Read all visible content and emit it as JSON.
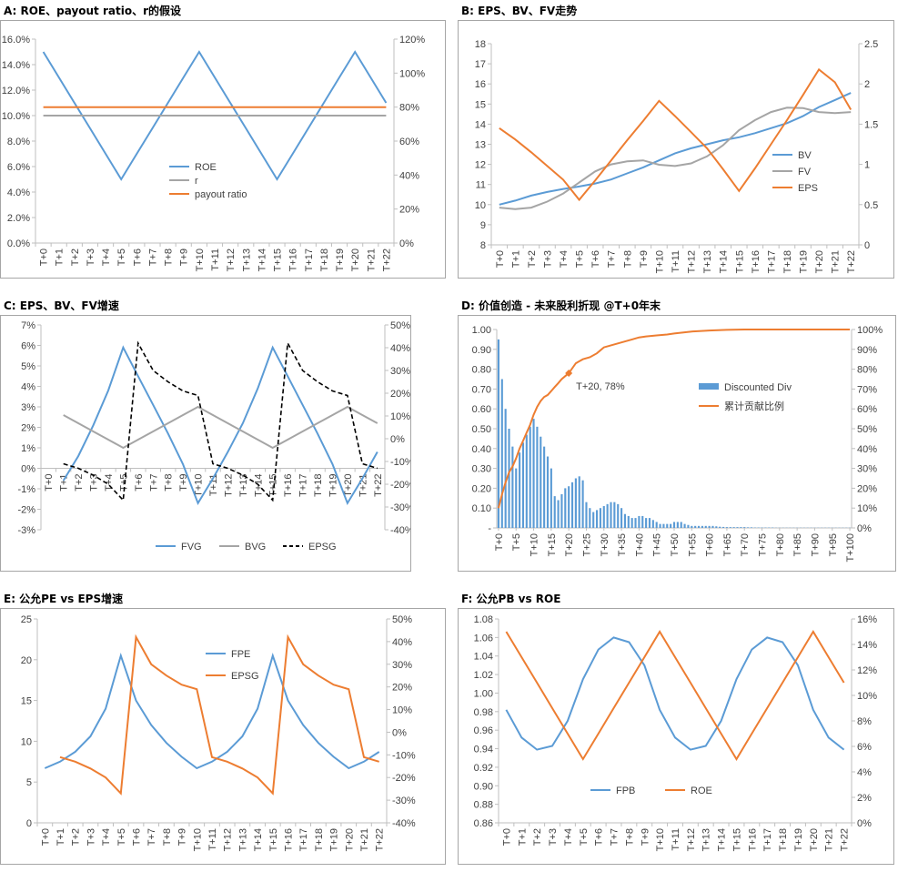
{
  "colors": {
    "blue": "#5b9bd5",
    "orange": "#ed7d31",
    "gray": "#a5a5a5",
    "black": "#000000",
    "axis": "#bfbfbf",
    "text": "#404040"
  },
  "panels": {
    "A": {
      "title": "A:  ROE、payout ratio、r的假设"
    },
    "B": {
      "title": "B: EPS、BV、FV走势"
    },
    "C": {
      "title": "C: EPS、BV、FV增速"
    },
    "D": {
      "title": "D:  价值创造 - 未来股利折现 @T+0年末"
    },
    "E": {
      "title": "E:  公允PE vs EPS增速"
    },
    "F": {
      "title": "F:  公允PB vs ROE"
    }
  },
  "chart_data": [
    {
      "id": "A",
      "type": "line",
      "categories": [
        "T+0",
        "T+1",
        "T+2",
        "T+3",
        "T+4",
        "T+5",
        "T+6",
        "T+7",
        "T+8",
        "T+9",
        "T+10",
        "T+11",
        "T+12",
        "T+13",
        "T+14",
        "T+15",
        "T+16",
        "T+17",
        "T+18",
        "T+19",
        "T+20",
        "T+21",
        "T+22"
      ],
      "y_left": {
        "min": 0,
        "max": 0.16,
        "step": 0.02,
        "labels": [
          "0.0%",
          "2.0%",
          "4.0%",
          "6.0%",
          "8.0%",
          "10.0%",
          "12.0%",
          "14.0%",
          "16.0%"
        ]
      },
      "y_right": {
        "min": 0,
        "max": 1.2,
        "step": 0.2,
        "labels": [
          "0%",
          "20%",
          "40%",
          "60%",
          "80%",
          "100%",
          "120%"
        ]
      },
      "legend_position": "center",
      "series": [
        {
          "name": "ROE",
          "color": "#5b9bd5",
          "dash": "solid",
          "axis": "left",
          "values": [
            0.15,
            0.13,
            0.11,
            0.09,
            0.07,
            0.05,
            0.07,
            0.09,
            0.11,
            0.13,
            0.15,
            0.13,
            0.11,
            0.09,
            0.07,
            0.05,
            0.07,
            0.09,
            0.11,
            0.13,
            0.15,
            0.13,
            0.11
          ]
        },
        {
          "name": "r",
          "color": "#a5a5a5",
          "dash": "solid",
          "axis": "left",
          "values": [
            0.1,
            0.1,
            0.1,
            0.1,
            0.1,
            0.1,
            0.1,
            0.1,
            0.1,
            0.1,
            0.1,
            0.1,
            0.1,
            0.1,
            0.1,
            0.1,
            0.1,
            0.1,
            0.1,
            0.1,
            0.1,
            0.1,
            0.1
          ]
        },
        {
          "name": "payout ratio",
          "color": "#ed7d31",
          "dash": "solid",
          "axis": "right",
          "values": [
            0.8,
            0.8,
            0.8,
            0.8,
            0.8,
            0.8,
            0.8,
            0.8,
            0.8,
            0.8,
            0.8,
            0.8,
            0.8,
            0.8,
            0.8,
            0.8,
            0.8,
            0.8,
            0.8,
            0.8,
            0.8,
            0.8,
            0.8
          ]
        }
      ]
    },
    {
      "id": "B",
      "type": "line",
      "categories": [
        "T+0",
        "T+1",
        "T+2",
        "T+3",
        "T+4",
        "T+5",
        "T+6",
        "T+7",
        "T+8",
        "T+9",
        "T+10",
        "T+11",
        "T+12",
        "T+13",
        "T+14",
        "T+15",
        "T+16",
        "T+17",
        "T+18",
        "T+19",
        "T+20",
        "T+21",
        "T+22"
      ],
      "y_left": {
        "min": 8,
        "max": 18,
        "step": 1,
        "labels": [
          "8",
          "9",
          "10",
          "11",
          "12",
          "13",
          "14",
          "15",
          "16",
          "17",
          "18"
        ]
      },
      "y_right": {
        "min": 0,
        "max": 2.5,
        "step": 0.5,
        "labels": [
          "0",
          "0.5",
          "1",
          "1.5",
          "2",
          "2.5"
        ]
      },
      "legend_position": "center-right",
      "series": [
        {
          "name": "BV",
          "color": "#5b9bd5",
          "dash": "solid",
          "axis": "left",
          "values": [
            10.0,
            10.2,
            10.45,
            10.63,
            10.78,
            10.9,
            11.05,
            11.25,
            11.55,
            11.85,
            12.2,
            12.55,
            12.8,
            13.0,
            13.2,
            13.35,
            13.55,
            13.8,
            14.05,
            14.4,
            14.85,
            15.2,
            15.55
          ]
        },
        {
          "name": "FV",
          "color": "#a5a5a5",
          "dash": "solid",
          "axis": "left",
          "values": [
            9.85,
            9.78,
            9.85,
            10.15,
            10.55,
            11.1,
            11.65,
            12.0,
            12.15,
            12.2,
            11.98,
            11.92,
            12.05,
            12.4,
            12.95,
            13.7,
            14.2,
            14.6,
            14.82,
            14.8,
            14.6,
            14.55,
            14.6
          ]
        },
        {
          "name": "EPS",
          "color": "#ed7d31",
          "dash": "solid",
          "axis": "right",
          "values": [
            1.45,
            1.31,
            1.15,
            0.98,
            0.81,
            0.56,
            0.8,
            1.05,
            1.3,
            1.54,
            1.79,
            1.6,
            1.4,
            1.2,
            0.94,
            0.67,
            0.95,
            1.25,
            1.55,
            1.86,
            2.18,
            2.02,
            1.68
          ]
        }
      ]
    },
    {
      "id": "C",
      "type": "line",
      "categories": [
        "T+0",
        "T+1",
        "T+2",
        "T+3",
        "T+4",
        "T+5",
        "T+6",
        "T+7",
        "T+8",
        "T+9",
        "T+10",
        "T+11",
        "T+12",
        "T+13",
        "T+14",
        "T+15",
        "T+16",
        "T+17",
        "T+18",
        "T+19",
        "T+20",
        "T+21",
        "T+22"
      ],
      "y_left": {
        "min": -0.03,
        "max": 0.07,
        "step": 0.01,
        "labels": [
          "-3%",
          "-2%",
          "-1%",
          "0%",
          "1%",
          "2%",
          "3%",
          "4%",
          "5%",
          "6%",
          "7%"
        ]
      },
      "y_right": {
        "min": -0.4,
        "max": 0.5,
        "step": 0.1,
        "labels": [
          "-40%",
          "-30%",
          "-20%",
          "-10%",
          "0%",
          "10%",
          "20%",
          "30%",
          "40%",
          "50%"
        ]
      },
      "legend_position": "bottom",
      "series": [
        {
          "name": "FVG",
          "color": "#5b9bd5",
          "dash": "solid",
          "axis": "left",
          "values": [
            null,
            -0.006,
            0.006,
            0.021,
            0.038,
            0.059,
            0.045,
            0.031,
            0.017,
            0.002,
            -0.017,
            -0.005,
            0.008,
            0.022,
            0.039,
            0.059,
            0.045,
            0.031,
            0.017,
            0.002,
            -0.017,
            -0.005,
            0.008
          ]
        },
        {
          "name": "BVG",
          "color": "#a5a5a5",
          "dash": "solid",
          "axis": "left",
          "values": [
            null,
            0.026,
            0.022,
            0.018,
            0.014,
            0.01,
            0.014,
            0.018,
            0.022,
            0.026,
            0.03,
            0.026,
            0.022,
            0.018,
            0.014,
            0.01,
            0.014,
            0.018,
            0.022,
            0.026,
            0.03,
            0.026,
            0.022
          ]
        },
        {
          "name": "EPSG",
          "color": "#000000",
          "dash": "dash",
          "axis": "right",
          "values": [
            null,
            -0.11,
            -0.13,
            -0.16,
            -0.2,
            -0.27,
            0.42,
            0.3,
            0.25,
            0.21,
            0.19,
            -0.11,
            -0.13,
            -0.16,
            -0.2,
            -0.27,
            0.42,
            0.3,
            0.25,
            0.21,
            0.19,
            -0.11,
            -0.13
          ]
        }
      ]
    },
    {
      "id": "D",
      "type": "bar",
      "categories": [
        "T+0",
        "T+5",
        "T+10",
        "T+15",
        "T+20",
        "T+25",
        "T+30",
        "T+35",
        "T+40",
        "T+45",
        "T+50",
        "T+55",
        "T+60",
        "T+65",
        "T+70",
        "T+75",
        "T+80",
        "T+85",
        "T+90",
        "T+95",
        "T+100"
      ],
      "y_left": {
        "min": 0,
        "max": 1.0,
        "step": 0.1,
        "labels": [
          "-",
          "0.10",
          "0.20",
          "0.30",
          "0.40",
          "0.50",
          "0.60",
          "0.70",
          "0.80",
          "0.90",
          "1.00"
        ]
      },
      "y_right": {
        "min": 0,
        "max": 1.0,
        "step": 0.1,
        "labels": [
          "0%",
          "10%",
          "20%",
          "30%",
          "40%",
          "50%",
          "60%",
          "70%",
          "80%",
          "90%",
          "100%"
        ]
      },
      "legend_position": "center-right",
      "annotation": {
        "text": "T+20, 78%",
        "x": 20,
        "y": 0.78
      },
      "bar_series": {
        "name": "Discounted Div",
        "color": "#5b9bd5",
        "values": [
          0.95,
          0.75,
          0.6,
          0.5,
          0.41,
          0.3,
          0.38,
          0.43,
          0.47,
          0.51,
          0.55,
          0.51,
          0.46,
          0.41,
          0.36,
          0.3,
          0.16,
          0.14,
          0.17,
          0.2,
          0.21,
          0.23,
          0.25,
          0.26,
          0.24,
          0.13,
          0.1,
          0.08,
          0.09,
          0.1,
          0.11,
          0.12,
          0.13,
          0.13,
          0.12,
          0.1,
          0.07,
          0.06,
          0.05,
          0.05,
          0.06,
          0.06,
          0.05,
          0.05,
          0.04,
          0.03,
          0.02,
          0.02,
          0.02,
          0.02,
          0.03,
          0.03,
          0.03,
          0.02,
          0.015,
          0.01,
          0.01,
          0.01,
          0.01,
          0.01,
          0.01,
          0.01,
          0.008,
          0.006,
          0.005,
          0.004,
          0.004,
          0.004,
          0.004,
          0.004,
          0.004,
          0.003,
          0.003,
          0.002,
          0.002,
          0.002,
          0.002,
          0.002,
          0.002,
          0.001,
          0.001,
          0.001,
          0.001,
          0.001,
          0.001,
          0.001,
          0.001,
          0.001,
          0.001,
          0.001,
          0.001,
          0.001,
          0.001,
          0.001,
          0.001,
          0.001,
          0.001,
          0.001,
          0.001,
          0.001,
          0.001
        ]
      },
      "series": [
        {
          "name": "累计贡献比例",
          "color": "#ed7d31",
          "dash": "solid",
          "axis": "right",
          "x": [
            0,
            1,
            2,
            3,
            4,
            5,
            6,
            7,
            8,
            9,
            10,
            11,
            12,
            13,
            14,
            15,
            16,
            17,
            18,
            19,
            20,
            22,
            24,
            26,
            28,
            30,
            32,
            35,
            38,
            40,
            42,
            45,
            48,
            50,
            55,
            60,
            65,
            70,
            75,
            80,
            90,
            100
          ],
          "values": [
            0.1,
            0.17,
            0.23,
            0.28,
            0.31,
            0.35,
            0.4,
            0.44,
            0.48,
            0.52,
            0.57,
            0.61,
            0.64,
            0.66,
            0.67,
            0.69,
            0.71,
            0.73,
            0.75,
            0.765,
            0.78,
            0.83,
            0.85,
            0.86,
            0.88,
            0.91,
            0.92,
            0.935,
            0.95,
            0.96,
            0.965,
            0.97,
            0.975,
            0.98,
            0.99,
            0.995,
            0.998,
            1.0,
            1.0,
            1.0,
            1.0,
            1.0
          ]
        }
      ]
    },
    {
      "id": "E",
      "type": "line",
      "categories": [
        "T+0",
        "T+1",
        "T+2",
        "T+3",
        "T+4",
        "T+5",
        "T+6",
        "T+7",
        "T+8",
        "T+9",
        "T+10",
        "T+11",
        "T+12",
        "T+13",
        "T+14",
        "T+15",
        "T+16",
        "T+17",
        "T+18",
        "T+19",
        "T+20",
        "T+21",
        "T+22"
      ],
      "y_left": {
        "min": 0,
        "max": 25,
        "step": 5,
        "labels": [
          "0",
          "5",
          "10",
          "15",
          "20",
          "25"
        ]
      },
      "y_right": {
        "min": -0.4,
        "max": 0.5,
        "step": 0.1,
        "labels": [
          "-40%",
          "-30%",
          "-20%",
          "-10%",
          "0%",
          "10%",
          "20%",
          "30%",
          "40%",
          "50%"
        ]
      },
      "legend_position": "top-center",
      "series": [
        {
          "name": "FPE",
          "color": "#5b9bd5",
          "dash": "solid",
          "axis": "left",
          "values": [
            6.7,
            7.5,
            8.7,
            10.6,
            14.0,
            20.5,
            15.0,
            12.0,
            9.8,
            8.1,
            6.7,
            7.5,
            8.7,
            10.6,
            14.0,
            20.5,
            15.0,
            12.0,
            9.8,
            8.1,
            6.7,
            7.5,
            8.7
          ]
        },
        {
          "name": "EPSG",
          "color": "#ed7d31",
          "dash": "solid",
          "axis": "right",
          "values": [
            null,
            -0.11,
            -0.13,
            -0.16,
            -0.2,
            -0.27,
            0.42,
            0.3,
            0.25,
            0.21,
            0.19,
            -0.11,
            -0.13,
            -0.16,
            -0.2,
            -0.27,
            0.42,
            0.3,
            0.25,
            0.21,
            0.19,
            -0.11,
            -0.13
          ]
        }
      ]
    },
    {
      "id": "F",
      "type": "line",
      "categories": [
        "T+0",
        "T+1",
        "T+2",
        "T+3",
        "T+4",
        "T+5",
        "T+6",
        "T+7",
        "T+8",
        "T+9",
        "T+10",
        "T+11",
        "T+12",
        "T+13",
        "T+14",
        "T+15",
        "T+16",
        "T+17",
        "T+18",
        "T+19",
        "T+20",
        "T+21",
        "T+22"
      ],
      "y_left": {
        "min": 0.86,
        "max": 1.08,
        "step": 0.02,
        "labels": [
          "0.86",
          "0.88",
          "0.90",
          "0.92",
          "0.94",
          "0.96",
          "0.98",
          "1.00",
          "1.02",
          "1.04",
          "1.06",
          "1.08"
        ]
      },
      "y_right": {
        "min": 0,
        "max": 0.16,
        "step": 0.02,
        "labels": [
          "0%",
          "2%",
          "4%",
          "6%",
          "8%",
          "10%",
          "12%",
          "14%",
          "16%"
        ]
      },
      "legend_position": "bottom-center",
      "series": [
        {
          "name": "FPB",
          "color": "#5b9bd5",
          "dash": "solid",
          "axis": "left",
          "values": [
            0.982,
            0.952,
            0.939,
            0.943,
            0.97,
            1.015,
            1.047,
            1.06,
            1.055,
            1.03,
            0.982,
            0.952,
            0.939,
            0.943,
            0.97,
            1.015,
            1.047,
            1.06,
            1.055,
            1.03,
            0.982,
            0.952,
            0.939
          ]
        },
        {
          "name": "ROE",
          "color": "#ed7d31",
          "dash": "solid",
          "axis": "right",
          "values": [
            0.15,
            0.13,
            0.11,
            0.09,
            0.07,
            0.05,
            0.07,
            0.09,
            0.11,
            0.13,
            0.15,
            0.13,
            0.11,
            0.09,
            0.07,
            0.05,
            0.07,
            0.09,
            0.11,
            0.13,
            0.15,
            0.13,
            0.11
          ]
        }
      ]
    }
  ]
}
